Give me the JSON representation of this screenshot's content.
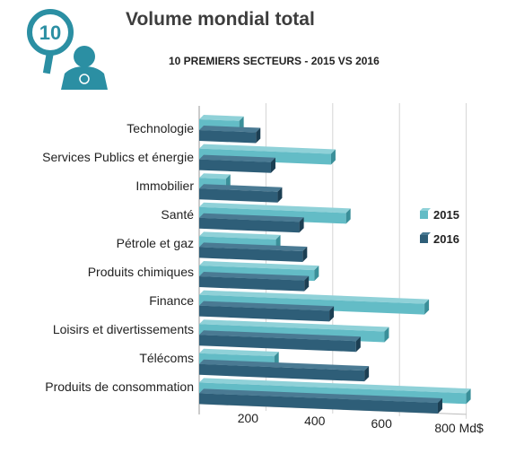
{
  "header": {
    "badge_number": "10",
    "title": "Volume mondial total",
    "subtitle": "10 PREMIERS SECTEURS - 2015 VS 2016"
  },
  "colors": {
    "s2015_front": "#63bcc6",
    "s2015_top": "#8fd1d8",
    "s2015_end": "#3a8f99",
    "s2016_front": "#2e5e78",
    "s2016_top": "#4a7a93",
    "s2016_end": "#1c3f53",
    "badge": "#2b8fa3"
  },
  "chart_data": {
    "type": "bar",
    "orientation": "horizontal",
    "title": "Volume mondial total",
    "subtitle": "10 PREMIERS SECTEURS - 2015 VS 2016",
    "categories": [
      "Technologie",
      "Services Publics et énergie",
      "Immobilier",
      "Santé",
      "Pétrole et gaz",
      "Produits chimiques",
      "Finance",
      "Loisirs et divertissements",
      "Télécoms",
      "Produits de consommation"
    ],
    "series": [
      {
        "name": "2015",
        "values": [
          120,
          395,
          80,
          440,
          230,
          345,
          675,
          555,
          225,
          810
        ]
      },
      {
        "name": "2016",
        "values": [
          170,
          215,
          235,
          300,
          310,
          315,
          390,
          470,
          495,
          715
        ]
      }
    ],
    "xlim": [
      0,
      800
    ],
    "tick_labels": [
      "200",
      "400",
      "600",
      "800 Md$"
    ],
    "legend_position": "right",
    "grid": true
  }
}
